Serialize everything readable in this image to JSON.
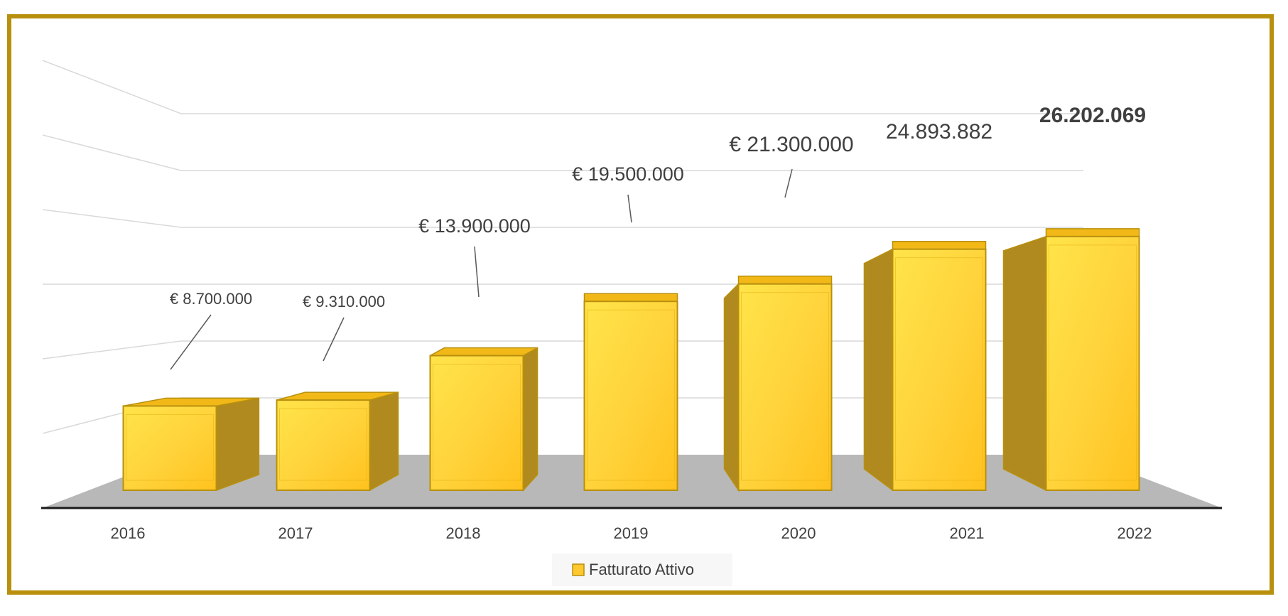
{
  "chart_data": {
    "type": "bar",
    "style": "3d-column",
    "categories": [
      "2016",
      "2017",
      "2018",
      "2019",
      "2020",
      "2021",
      "2022"
    ],
    "series": [
      {
        "name": "Fatturato Attivo",
        "values": [
          8700000,
          9310000,
          13900000,
          19500000,
          21300000,
          24893882,
          26202069
        ],
        "data_labels": [
          "€ 8.700.000",
          "€ 9.310.000",
          "€ 13.900.000",
          "€ 19.500.000",
          "€ 21.300.000",
          "24.893.882",
          "26.202.069"
        ]
      }
    ],
    "ylim": [
      0,
      30000000
    ],
    "grid": true,
    "legend": "bottom",
    "colors": {
      "bar_front": "#FFC82E",
      "bar_side": "#B08A1E",
      "bar_edge": "#B8900E",
      "floor": "#B8B8B8",
      "frame": "#B8900E",
      "text": "#404040"
    }
  }
}
